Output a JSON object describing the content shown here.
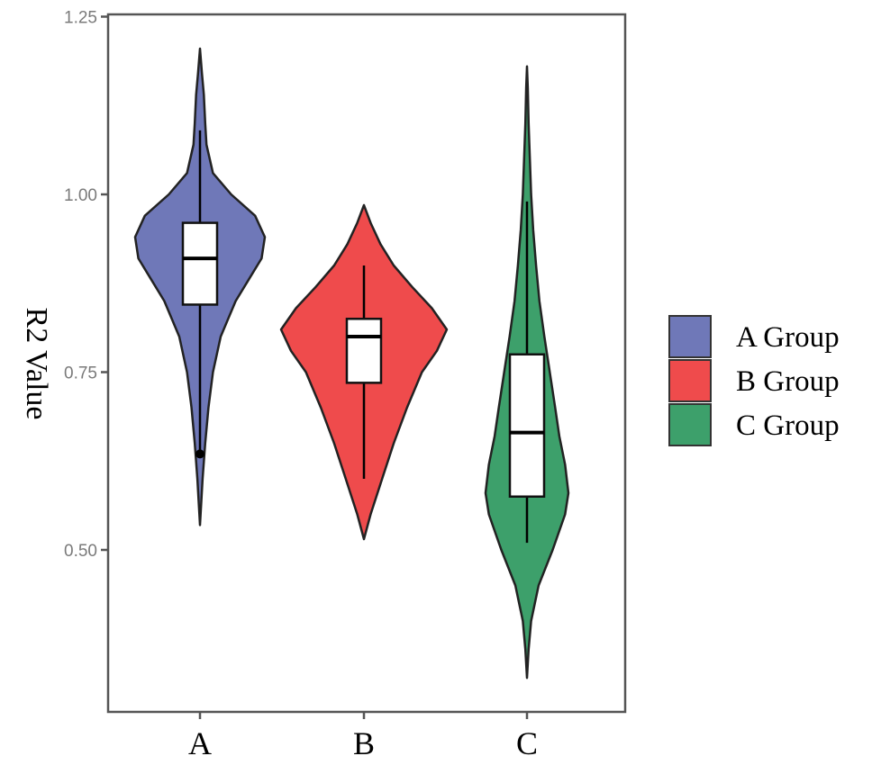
{
  "chart_data": {
    "type": "violin",
    "ylabel": "R2 Value",
    "xlabel": "",
    "ylim": [
      0.3,
      1.25
    ],
    "yticks": [
      "0.50",
      "0.75",
      "1.00",
      "1.25"
    ],
    "ytick_values": [
      0.5,
      0.75,
      1.0,
      1.25
    ],
    "categories": [
      "A",
      "B",
      "C"
    ],
    "grid": false,
    "legend_position": "right",
    "series": [
      {
        "name": "A Group",
        "category": "A",
        "color": "#6f78b8",
        "whisker_low": 0.64,
        "q1": 0.845,
        "median": 0.91,
        "q3": 0.96,
        "whisker_high": 1.09,
        "outliers": [
          0.635
        ],
        "violin_min": 0.535,
        "violin_max": 1.205,
        "density": [
          [
            0.535,
            0.0
          ],
          [
            0.6,
            0.04
          ],
          [
            0.65,
            0.08
          ],
          [
            0.7,
            0.13
          ],
          [
            0.75,
            0.2
          ],
          [
            0.8,
            0.32
          ],
          [
            0.85,
            0.55
          ],
          [
            0.88,
            0.75
          ],
          [
            0.91,
            0.95
          ],
          [
            0.94,
            1.0
          ],
          [
            0.97,
            0.85
          ],
          [
            1.0,
            0.48
          ],
          [
            1.03,
            0.2
          ],
          [
            1.07,
            0.1
          ],
          [
            1.1,
            0.08
          ],
          [
            1.14,
            0.06
          ],
          [
            1.17,
            0.03
          ],
          [
            1.205,
            0.0
          ]
        ]
      },
      {
        "name": "B Group",
        "category": "B",
        "color": "#ef4b4c",
        "whisker_low": 0.6,
        "q1": 0.735,
        "median": 0.8,
        "q3": 0.825,
        "whisker_high": 0.9,
        "outliers": [],
        "violin_min": 0.515,
        "violin_max": 0.985,
        "density": [
          [
            0.515,
            0.0
          ],
          [
            0.55,
            0.08
          ],
          [
            0.6,
            0.22
          ],
          [
            0.65,
            0.36
          ],
          [
            0.7,
            0.52
          ],
          [
            0.75,
            0.7
          ],
          [
            0.78,
            0.88
          ],
          [
            0.81,
            1.0
          ],
          [
            0.84,
            0.82
          ],
          [
            0.87,
            0.58
          ],
          [
            0.9,
            0.36
          ],
          [
            0.93,
            0.2
          ],
          [
            0.96,
            0.08
          ],
          [
            0.985,
            0.0
          ]
        ]
      },
      {
        "name": "C Group",
        "category": "C",
        "color": "#3da06b",
        "whisker_low": 0.51,
        "q1": 0.575,
        "median": 0.665,
        "q3": 0.775,
        "whisker_high": 0.99,
        "outliers": [],
        "violin_min": 0.32,
        "violin_max": 1.18,
        "density": [
          [
            0.32,
            0.0
          ],
          [
            0.36,
            0.04
          ],
          [
            0.4,
            0.1
          ],
          [
            0.45,
            0.28
          ],
          [
            0.5,
            0.62
          ],
          [
            0.55,
            0.92
          ],
          [
            0.58,
            1.0
          ],
          [
            0.62,
            0.92
          ],
          [
            0.66,
            0.78
          ],
          [
            0.7,
            0.68
          ],
          [
            0.75,
            0.55
          ],
          [
            0.8,
            0.42
          ],
          [
            0.85,
            0.3
          ],
          [
            0.9,
            0.22
          ],
          [
            0.95,
            0.15
          ],
          [
            1.0,
            0.1
          ],
          [
            1.05,
            0.07
          ],
          [
            1.1,
            0.04
          ],
          [
            1.15,
            0.02
          ],
          [
            1.18,
            0.0
          ]
        ]
      }
    ]
  }
}
